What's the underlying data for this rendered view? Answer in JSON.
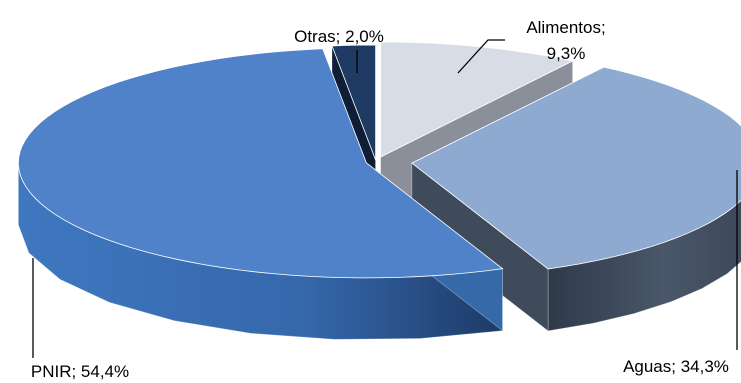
{
  "chart_data": {
    "type": "pie",
    "style": "3d-exploded",
    "slices": [
      {
        "label": "Alimentos",
        "value": 9.3,
        "label_lines": [
          "Alimentos;",
          "9,3%"
        ],
        "top_color": "#d7dce7",
        "side_color": "#8a8f99"
      },
      {
        "label": "Aguas",
        "value": 34.3,
        "label_lines": [
          "Aguas; 34,3%"
        ],
        "top_color": "#8eaad0",
        "side_color": "#3f4b5b"
      },
      {
        "label": "PNIR",
        "value": 54.4,
        "label_lines": [
          "PNIR; 54,4%"
        ],
        "top_color": "#4f82c8",
        "side_color": "#3569a8"
      },
      {
        "label": "Otras",
        "value": 2.0,
        "label_lines": [
          "Otras; 2,0%"
        ],
        "top_color": "#1f3a63",
        "side_color": "#0f1e36"
      }
    ]
  }
}
